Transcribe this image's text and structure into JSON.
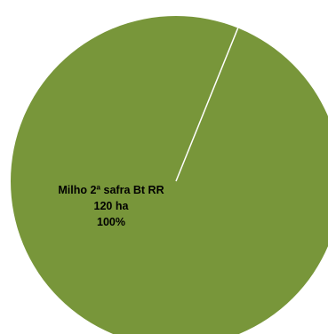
{
  "chart_data": {
    "type": "pie",
    "categories": [
      "Milho 2ª safra Bt RR"
    ],
    "values": [
      120
    ],
    "units": "ha",
    "percentages": [
      "100%"
    ],
    "data_labels": [
      {
        "name": "Milho 2ª safra Bt RR",
        "value": "120 ha",
        "percent": "100%"
      }
    ],
    "colors": {
      "slice": "#78963a",
      "separator": "#ffffff"
    }
  }
}
